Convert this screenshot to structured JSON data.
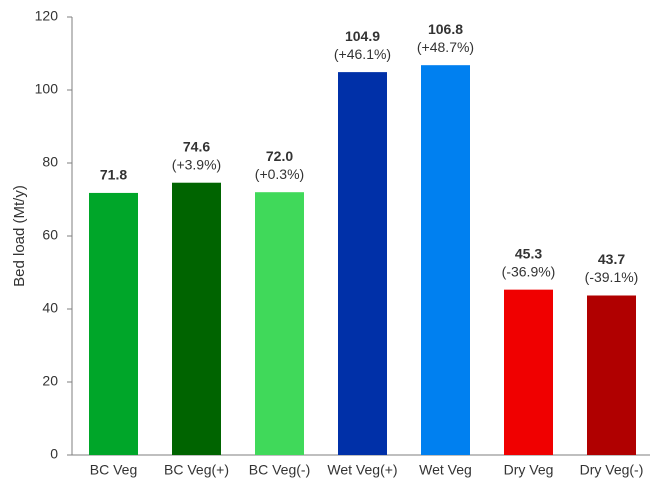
{
  "chart_data": {
    "type": "bar",
    "y_label": "Bed load (Mt/y)",
    "categories": [
      "BC Veg",
      "BC Veg(+)",
      "BC Veg(-)",
      "Wet Veg(+)",
      "Wet Veg",
      "Dry Veg",
      "Dry Veg(-)"
    ],
    "values": [
      71.8,
      74.6,
      72.0,
      104.9,
      106.8,
      45.3,
      43.7
    ],
    "value_labels": [
      "71.8",
      "74.6",
      "72.0",
      "104.9",
      "106.8",
      "45.3",
      "43.7"
    ],
    "annotations": [
      null,
      "(+3.9%)",
      "(+0.3%)",
      "(+46.1%)",
      "(+48.7%)",
      "(-36.9%)",
      "(-39.1%)"
    ],
    "colors": [
      "#00a629",
      "#006400",
      "#40d95a",
      "#0030a8",
      "#0080f0",
      "#f00000",
      "#b00000"
    ],
    "ylim": [
      0,
      120
    ],
    "yticks": [
      0,
      20,
      40,
      60,
      80,
      100,
      120
    ],
    "grid": false
  }
}
